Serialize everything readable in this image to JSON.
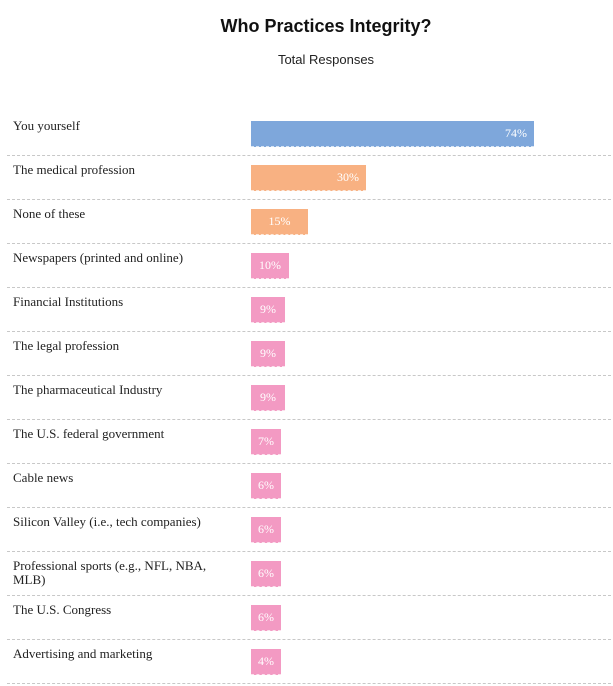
{
  "colors": {
    "blue": "#7ea7db",
    "orange": "#f8b182",
    "pink": "#f39ac3"
  },
  "chart_data": {
    "type": "bar",
    "orientation": "horizontal",
    "title": "Who Practices Integrity?",
    "subtitle": "Total Responses",
    "xlabel": "",
    "ylabel": "",
    "xlim": [
      0,
      100
    ],
    "categories": [
      "You yourself",
      "The medical profession",
      "None of these",
      "Newspapers (printed and online)",
      "Financial Institutions",
      "The legal profession",
      "The pharmaceutical Industry",
      "The U.S. federal government",
      "Cable news",
      "Silicon Valley (i.e., tech companies)",
      "Professional sports (e.g., NFL, NBA, MLB)",
      "The U.S. Congress",
      "Advertising and marketing"
    ],
    "values": [
      74,
      30,
      15,
      10,
      9,
      9,
      9,
      7,
      6,
      6,
      6,
      6,
      4
    ],
    "value_labels": [
      "74%",
      "30%",
      "15%",
      "10%",
      "9%",
      "9%",
      "9%",
      "7%",
      "6%",
      "6%",
      "6%",
      "6%",
      "4%"
    ],
    "bar_colors": [
      "blue",
      "orange",
      "orange",
      "pink",
      "pink",
      "pink",
      "pink",
      "pink",
      "pink",
      "pink",
      "pink",
      "pink",
      "pink"
    ]
  }
}
